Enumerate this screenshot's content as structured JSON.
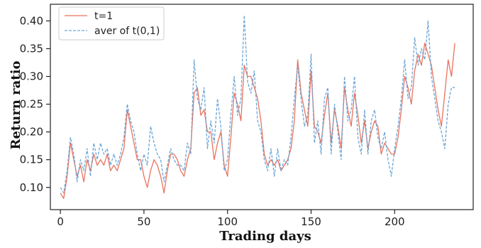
{
  "chart_data": {
    "type": "line",
    "title": "",
    "xlabel": "Trading days",
    "ylabel": "Return ratio",
    "xlim": [
      -6,
      247
    ],
    "ylim": [
      0.06,
      0.43
    ],
    "x_ticks": [
      0,
      50,
      100,
      150,
      200
    ],
    "y_ticks": [
      0.1,
      0.15,
      0.2,
      0.25,
      0.3,
      0.35,
      0.4
    ],
    "grid": false,
    "legend_position": "top-left",
    "series": [
      {
        "name": "t=1",
        "color": "#e8735e",
        "style": "solid",
        "points": [
          [
            0,
            0.09
          ],
          [
            2,
            0.08
          ],
          [
            4,
            0.12
          ],
          [
            6,
            0.18
          ],
          [
            8,
            0.15
          ],
          [
            10,
            0.12
          ],
          [
            12,
            0.14
          ],
          [
            14,
            0.11
          ],
          [
            16,
            0.15
          ],
          [
            18,
            0.13
          ],
          [
            20,
            0.16
          ],
          [
            22,
            0.14
          ],
          [
            24,
            0.15
          ],
          [
            26,
            0.14
          ],
          [
            28,
            0.16
          ],
          [
            30,
            0.13
          ],
          [
            32,
            0.14
          ],
          [
            34,
            0.13
          ],
          [
            36,
            0.15
          ],
          [
            38,
            0.17
          ],
          [
            40,
            0.24
          ],
          [
            42,
            0.21
          ],
          [
            44,
            0.18
          ],
          [
            46,
            0.15
          ],
          [
            48,
            0.15
          ],
          [
            50,
            0.12
          ],
          [
            52,
            0.1
          ],
          [
            54,
            0.13
          ],
          [
            56,
            0.15
          ],
          [
            58,
            0.14
          ],
          [
            60,
            0.12
          ],
          [
            62,
            0.09
          ],
          [
            64,
            0.13
          ],
          [
            66,
            0.16
          ],
          [
            68,
            0.16
          ],
          [
            70,
            0.15
          ],
          [
            72,
            0.13
          ],
          [
            74,
            0.12
          ],
          [
            76,
            0.15
          ],
          [
            78,
            0.17
          ],
          [
            80,
            0.27
          ],
          [
            82,
            0.28
          ],
          [
            84,
            0.23
          ],
          [
            86,
            0.24
          ],
          [
            88,
            0.2
          ],
          [
            90,
            0.2
          ],
          [
            92,
            0.15
          ],
          [
            94,
            0.18
          ],
          [
            96,
            0.2
          ],
          [
            98,
            0.14
          ],
          [
            100,
            0.12
          ],
          [
            102,
            0.19
          ],
          [
            104,
            0.27
          ],
          [
            106,
            0.25
          ],
          [
            108,
            0.22
          ],
          [
            110,
            0.32
          ],
          [
            112,
            0.3
          ],
          [
            114,
            0.3
          ],
          [
            116,
            0.28
          ],
          [
            118,
            0.26
          ],
          [
            120,
            0.22
          ],
          [
            122,
            0.16
          ],
          [
            124,
            0.14
          ],
          [
            126,
            0.15
          ],
          [
            128,
            0.14
          ],
          [
            130,
            0.15
          ],
          [
            132,
            0.13
          ],
          [
            134,
            0.14
          ],
          [
            136,
            0.15
          ],
          [
            138,
            0.17
          ],
          [
            140,
            0.22
          ],
          [
            142,
            0.33
          ],
          [
            144,
            0.27
          ],
          [
            146,
            0.24
          ],
          [
            148,
            0.21
          ],
          [
            150,
            0.31
          ],
          [
            152,
            0.21
          ],
          [
            154,
            0.2
          ],
          [
            156,
            0.18
          ],
          [
            158,
            0.23
          ],
          [
            160,
            0.27
          ],
          [
            162,
            0.18
          ],
          [
            164,
            0.24
          ],
          [
            166,
            0.21
          ],
          [
            168,
            0.17
          ],
          [
            170,
            0.28
          ],
          [
            172,
            0.24
          ],
          [
            174,
            0.21
          ],
          [
            176,
            0.27
          ],
          [
            178,
            0.23
          ],
          [
            180,
            0.18
          ],
          [
            182,
            0.22
          ],
          [
            184,
            0.17
          ],
          [
            186,
            0.2
          ],
          [
            188,
            0.22
          ],
          [
            190,
            0.21
          ],
          [
            192,
            0.16
          ],
          [
            194,
            0.18
          ],
          [
            196,
            0.17
          ],
          [
            198,
            0.16
          ],
          [
            200,
            0.16
          ],
          [
            202,
            0.19
          ],
          [
            204,
            0.24
          ],
          [
            206,
            0.3
          ],
          [
            208,
            0.28
          ],
          [
            210,
            0.25
          ],
          [
            212,
            0.31
          ],
          [
            214,
            0.34
          ],
          [
            216,
            0.32
          ],
          [
            218,
            0.36
          ],
          [
            220,
            0.34
          ],
          [
            222,
            0.32
          ],
          [
            224,
            0.28
          ],
          [
            226,
            0.24
          ],
          [
            228,
            0.21
          ],
          [
            230,
            0.27
          ],
          [
            232,
            0.33
          ],
          [
            234,
            0.3
          ],
          [
            236,
            0.36
          ]
        ]
      },
      {
        "name": "aver of t(0,1)",
        "color": "#6ea6d6",
        "style": "dashed",
        "points": [
          [
            0,
            0.1
          ],
          [
            2,
            0.09
          ],
          [
            4,
            0.13
          ],
          [
            6,
            0.19
          ],
          [
            8,
            0.16
          ],
          [
            10,
            0.11
          ],
          [
            12,
            0.15
          ],
          [
            14,
            0.13
          ],
          [
            16,
            0.17
          ],
          [
            18,
            0.12
          ],
          [
            20,
            0.18
          ],
          [
            22,
            0.15
          ],
          [
            24,
            0.18
          ],
          [
            26,
            0.16
          ],
          [
            28,
            0.17
          ],
          [
            30,
            0.14
          ],
          [
            32,
            0.16
          ],
          [
            34,
            0.14
          ],
          [
            36,
            0.16
          ],
          [
            38,
            0.19
          ],
          [
            40,
            0.25
          ],
          [
            42,
            0.22
          ],
          [
            44,
            0.2
          ],
          [
            46,
            0.16
          ],
          [
            48,
            0.13
          ],
          [
            50,
            0.16
          ],
          [
            52,
            0.14
          ],
          [
            54,
            0.21
          ],
          [
            56,
            0.18
          ],
          [
            58,
            0.16
          ],
          [
            60,
            0.15
          ],
          [
            62,
            0.11
          ],
          [
            64,
            0.14
          ],
          [
            66,
            0.17
          ],
          [
            68,
            0.15
          ],
          [
            70,
            0.14
          ],
          [
            72,
            0.14
          ],
          [
            74,
            0.13
          ],
          [
            76,
            0.18
          ],
          [
            78,
            0.16
          ],
          [
            80,
            0.33
          ],
          [
            82,
            0.26
          ],
          [
            84,
            0.24
          ],
          [
            86,
            0.28
          ],
          [
            88,
            0.17
          ],
          [
            90,
            0.22
          ],
          [
            92,
            0.18
          ],
          [
            94,
            0.26
          ],
          [
            96,
            0.21
          ],
          [
            98,
            0.13
          ],
          [
            100,
            0.15
          ],
          [
            102,
            0.23
          ],
          [
            104,
            0.3
          ],
          [
            106,
            0.23
          ],
          [
            108,
            0.26
          ],
          [
            110,
            0.41
          ],
          [
            112,
            0.29
          ],
          [
            114,
            0.27
          ],
          [
            116,
            0.31
          ],
          [
            118,
            0.22
          ],
          [
            120,
            0.2
          ],
          [
            122,
            0.15
          ],
          [
            124,
            0.13
          ],
          [
            126,
            0.17
          ],
          [
            128,
            0.12
          ],
          [
            130,
            0.17
          ],
          [
            132,
            0.13
          ],
          [
            134,
            0.15
          ],
          [
            136,
            0.14
          ],
          [
            138,
            0.19
          ],
          [
            140,
            0.26
          ],
          [
            142,
            0.32
          ],
          [
            144,
            0.26
          ],
          [
            146,
            0.21
          ],
          [
            148,
            0.23
          ],
          [
            150,
            0.34
          ],
          [
            152,
            0.18
          ],
          [
            154,
            0.22
          ],
          [
            156,
            0.16
          ],
          [
            158,
            0.26
          ],
          [
            160,
            0.28
          ],
          [
            162,
            0.16
          ],
          [
            164,
            0.25
          ],
          [
            166,
            0.2
          ],
          [
            168,
            0.15
          ],
          [
            170,
            0.3
          ],
          [
            172,
            0.22
          ],
          [
            174,
            0.24
          ],
          [
            176,
            0.3
          ],
          [
            178,
            0.19
          ],
          [
            180,
            0.16
          ],
          [
            182,
            0.24
          ],
          [
            184,
            0.16
          ],
          [
            186,
            0.22
          ],
          [
            188,
            0.24
          ],
          [
            190,
            0.19
          ],
          [
            192,
            0.17
          ],
          [
            194,
            0.2
          ],
          [
            196,
            0.15
          ],
          [
            198,
            0.12
          ],
          [
            200,
            0.17
          ],
          [
            202,
            0.21
          ],
          [
            204,
            0.26
          ],
          [
            206,
            0.33
          ],
          [
            208,
            0.26
          ],
          [
            210,
            0.28
          ],
          [
            212,
            0.37
          ],
          [
            214,
            0.32
          ],
          [
            216,
            0.35
          ],
          [
            218,
            0.33
          ],
          [
            220,
            0.4
          ],
          [
            222,
            0.3
          ],
          [
            224,
            0.26
          ],
          [
            226,
            0.22
          ],
          [
            228,
            0.2
          ],
          [
            230,
            0.17
          ],
          [
            232,
            0.25
          ],
          [
            234,
            0.28
          ],
          [
            236,
            0.28
          ]
        ]
      }
    ]
  }
}
